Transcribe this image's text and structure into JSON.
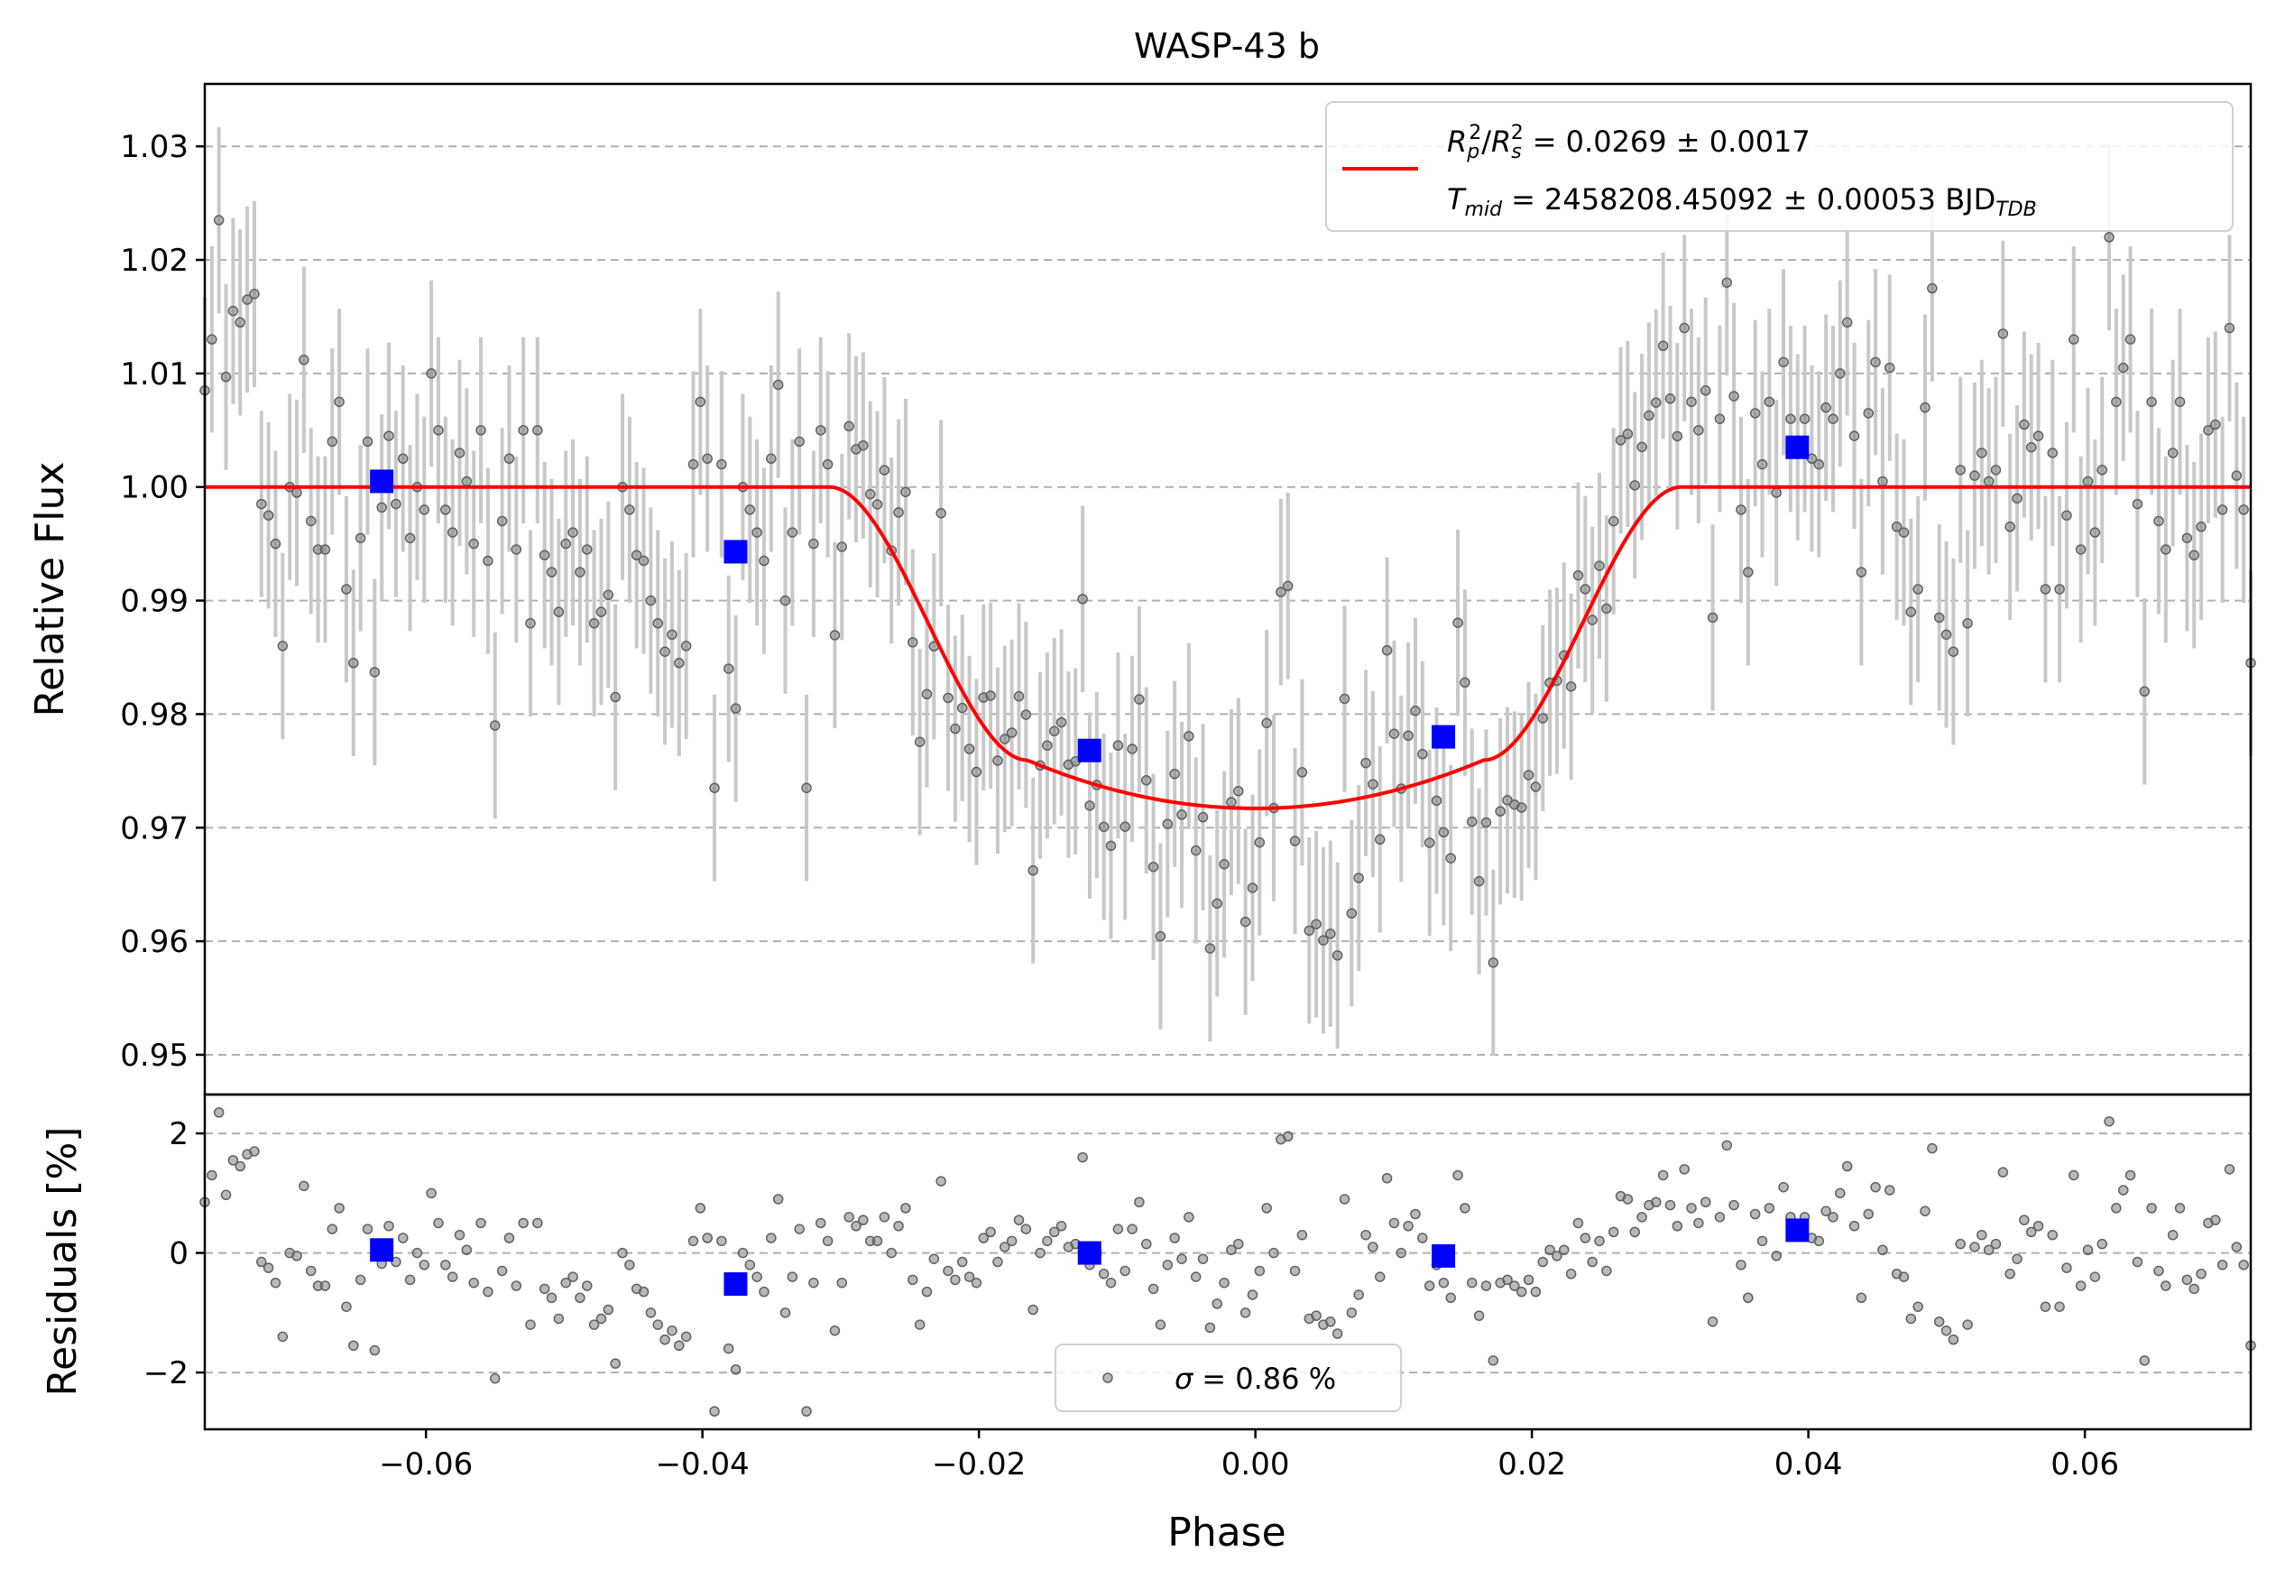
{
  "chart_data": {
    "type": "scatter",
    "title": "WASP-43 b",
    "xlabel": "Phase",
    "xlim": [
      -0.076,
      0.072
    ],
    "xticks": [
      -0.06,
      -0.04,
      -0.02,
      0.0,
      0.02,
      0.04,
      0.06
    ],
    "xtick_labels": [
      "−0.06",
      "−0.04",
      "−0.02",
      "0.00",
      "0.02",
      "0.04",
      "0.06"
    ],
    "grid": true,
    "top_panel": {
      "ylabel": "Relative Flux",
      "ylim": [
        0.9465,
        1.0355
      ],
      "yticks": [
        0.95,
        0.96,
        0.97,
        0.98,
        0.99,
        1.0,
        1.01,
        1.02,
        1.03
      ],
      "ytick_labels": [
        "0.95",
        "0.96",
        "0.97",
        "0.98",
        "0.99",
        "1.00",
        "1.01",
        "1.02",
        "1.03"
      ],
      "model": {
        "color": "#ff0000",
        "rp_rs2": 0.0269,
        "t1": 0.0308,
        "t2": 0.0165,
        "depth": 0.0283,
        "legend_line1": "= 0.0269 ± 0.0017",
        "legend_line2": "= 2458208.45092 ± 0.00053 BJD",
        "legend_rp": "R",
        "legend_rp_sub": "p",
        "legend_rs": "R",
        "legend_rs_sub": "s",
        "legend_sup": "2",
        "legend_tmid": "T",
        "legend_tmid_sub": "mid",
        "legend_tdb_sub": "TDB",
        "legend_location": "top-right"
      },
      "binned": {
        "color": "#0000ff",
        "x": [
          -0.0632,
          -0.0376,
          -0.012,
          0.0136,
          0.0392
        ],
        "y": [
          1.0005,
          0.9943,
          0.9768,
          0.978,
          1.0035
        ],
        "yerr": [
          0.0008,
          0.0006,
          0.0006,
          0.0008,
          0.0006
        ]
      },
      "points_color": "#808080",
      "errorbar_color": "#c8c8c8",
      "errorbar_half": 0.0082
    },
    "bottom_panel": {
      "ylabel": "Residuals [%]",
      "ylim": [
        -2.95,
        2.65
      ],
      "yticks": [
        -2,
        0,
        2
      ],
      "ytick_labels": [
        "−2",
        "0",
        "2"
      ],
      "binned_y": [
        0.05,
        -0.52,
        0.0,
        -0.05,
        0.38
      ],
      "legend": "= 0.86 %",
      "legend_symbol": "σ",
      "legend_location": "bottom-center"
    },
    "residuals": [
      0.85,
      1.3,
      2.35,
      0.97,
      1.55,
      1.45,
      1.65,
      1.7,
      -0.15,
      -0.25,
      -0.5,
      -1.4,
      0.0,
      -0.05,
      1.12,
      -0.3,
      -0.55,
      -0.55,
      0.4,
      0.75,
      -0.9,
      -1.55,
      -0.45,
      0.4,
      -1.63,
      -0.18,
      0.45,
      -0.15,
      0.25,
      -0.45,
      0.0,
      -0.2,
      1.0,
      0.5,
      -0.2,
      -0.4,
      0.3,
      0.05,
      -0.5,
      0.5,
      -0.65,
      -2.1,
      -0.3,
      0.25,
      -0.55,
      0.5,
      -1.2,
      0.5,
      -0.6,
      -0.75,
      -1.1,
      -0.5,
      -0.4,
      -0.75,
      -0.55,
      -1.2,
      -1.1,
      -0.95,
      -1.85,
      0.0,
      -0.2,
      -0.6,
      -0.65,
      -1.0,
      -1.2,
      -1.45,
      -1.3,
      -1.55,
      -1.4,
      0.2,
      0.75,
      0.25,
      -2.65,
      0.2,
      -1.6,
      -1.95,
      0.0,
      -0.2,
      -0.4,
      -0.65,
      0.25,
      0.9,
      -1.0,
      -0.4,
      0.4,
      -2.65,
      -0.5,
      0.5,
      0.2,
      -1.3,
      -0.5,
      0.6,
      0.45,
      0.55,
      0.2,
      0.2,
      0.6,
      0.0,
      0.45,
      0.75,
      -0.45,
      -1.2,
      -0.65,
      -0.1,
      1.2,
      -0.3,
      -0.45,
      -0.15,
      -0.4,
      -0.5,
      0.25,
      0.35,
      -0.15,
      0.1,
      0.2,
      0.55,
      0.4,
      -0.95,
      0.0,
      0.2,
      0.35,
      0.45,
      0.1,
      0.15,
      1.6,
      -0.2,
      0.0,
      -0.35,
      -0.5,
      0.4,
      -0.3,
      0.4,
      0.85,
      0.15,
      -0.6,
      -1.2,
      -0.2,
      0.25,
      -0.1,
      0.6,
      -0.4,
      -0.1,
      -1.25,
      -0.85,
      -0.5,
      0.05,
      0.15,
      -1.0,
      -0.7,
      -0.3,
      0.75,
      0.0,
      1.9,
      1.95,
      -0.3,
      0.3,
      -1.1,
      -1.05,
      -1.2,
      -1.15,
      -1.35,
      0.9,
      -1.0,
      -0.7,
      0.3,
      0.1,
      -0.4,
      1.25,
      0.5,
      0.0,
      0.45,
      0.65,
      0.25,
      -0.55,
      -0.2,
      -0.5,
      -0.75,
      1.3,
      0.75,
      -0.5,
      -1.05,
      -0.55,
      -1.8,
      -0.5,
      -0.45,
      -0.55,
      -0.65,
      -0.45,
      -0.65,
      -0.15,
      0.05,
      -0.05,
      0.05,
      -0.35,
      0.5,
      0.25,
      -0.15,
      0.2,
      -0.3,
      0.35,
      0.95,
      0.9,
      0.35,
      0.6,
      0.8,
      0.85,
      1.3,
      0.8,
      0.45,
      1.4,
      0.75,
      0.5,
      0.85,
      -1.15,
      0.6,
      1.8,
      0.8,
      -0.2,
      -0.75,
      0.65,
      0.2,
      0.75,
      -0.05,
      1.1,
      0.6,
      0.35,
      0.6,
      0.25,
      0.2,
      0.7,
      0.6,
      1.0,
      1.45,
      0.45,
      -0.75,
      0.65,
      1.1,
      0.05,
      1.05,
      -0.35,
      -0.4,
      -1.1,
      -0.9,
      0.7,
      1.75,
      -1.15,
      -1.3,
      -1.45,
      0.15,
      -1.2,
      0.1,
      0.3,
      0.05,
      0.15,
      1.35,
      -0.35,
      -0.1,
      0.55,
      0.35,
      0.45,
      -0.9,
      0.3,
      -0.9,
      -0.25,
      1.3,
      -0.55,
      0.05,
      -0.4,
      0.15,
      2.2,
      0.75,
      1.05,
      1.3,
      -0.15,
      -1.8,
      0.75,
      -0.3,
      -0.55,
      0.3,
      0.75,
      -0.45,
      -0.6,
      -0.35,
      0.5,
      0.55,
      -0.2,
      1.4,
      0.1,
      -0.2,
      -1.55
    ]
  }
}
